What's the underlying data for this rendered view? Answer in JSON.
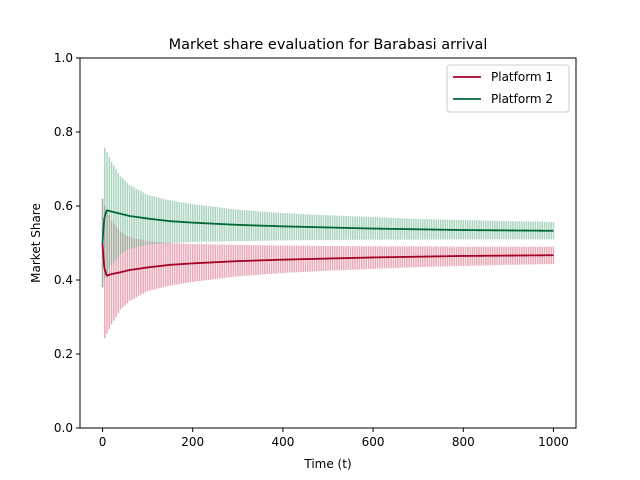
{
  "chart_data": {
    "type": "line",
    "title": "Market share evaluation for Barabasi arrival",
    "xlabel": "Time (t)",
    "ylabel": "Market Share",
    "xlim": [
      -50,
      1050
    ],
    "ylim": [
      0.0,
      1.0
    ],
    "xticks": [
      "0",
      "200",
      "400",
      "600",
      "800",
      "1000"
    ],
    "yticks": [
      "0.0",
      "0.2",
      "0.4",
      "0.6",
      "0.8",
      "1.0"
    ],
    "legend_position": "top-right",
    "grid": false,
    "series": [
      {
        "name": "Platform 1",
        "color": "#a50026",
        "band_color": "#d6607a",
        "x": [
          0,
          3,
          7,
          10,
          20,
          40,
          60,
          100,
          150,
          200,
          300,
          400,
          500,
          600,
          700,
          800,
          900,
          1000
        ],
        "y": [
          0.5,
          0.44,
          0.418,
          0.412,
          0.416,
          0.421,
          0.427,
          0.434,
          0.441,
          0.445,
          0.451,
          0.455,
          0.458,
          0.461,
          0.463,
          0.465,
          0.466,
          0.467
        ],
        "lower": [
          0.38,
          0.245,
          0.24,
          0.255,
          0.28,
          0.32,
          0.343,
          0.37,
          0.385,
          0.395,
          0.41,
          0.419,
          0.425,
          0.43,
          0.435,
          0.438,
          0.441,
          0.443
        ],
        "upper": [
          0.62,
          0.6,
          0.6,
          0.59,
          0.56,
          0.53,
          0.516,
          0.505,
          0.5,
          0.497,
          0.495,
          0.493,
          0.492,
          0.491,
          0.491,
          0.49,
          0.49,
          0.49
        ]
      },
      {
        "name": "Platform 2",
        "color": "#006837",
        "band_color": "#66b08a",
        "x": [
          0,
          3,
          7,
          10,
          20,
          40,
          60,
          100,
          150,
          200,
          300,
          400,
          500,
          600,
          700,
          800,
          900,
          1000
        ],
        "y": [
          0.5,
          0.56,
          0.582,
          0.588,
          0.585,
          0.579,
          0.573,
          0.566,
          0.559,
          0.555,
          0.549,
          0.545,
          0.542,
          0.539,
          0.537,
          0.535,
          0.534,
          0.533
        ],
        "lower": [
          0.38,
          0.4,
          0.41,
          0.42,
          0.44,
          0.47,
          0.484,
          0.495,
          0.5,
          0.503,
          0.505,
          0.507,
          0.508,
          0.509,
          0.509,
          0.51,
          0.51,
          0.51
        ],
        "upper": [
          0.62,
          0.755,
          0.76,
          0.745,
          0.72,
          0.68,
          0.657,
          0.63,
          0.615,
          0.605,
          0.59,
          0.581,
          0.575,
          0.57,
          0.565,
          0.562,
          0.559,
          0.557
        ]
      }
    ]
  }
}
